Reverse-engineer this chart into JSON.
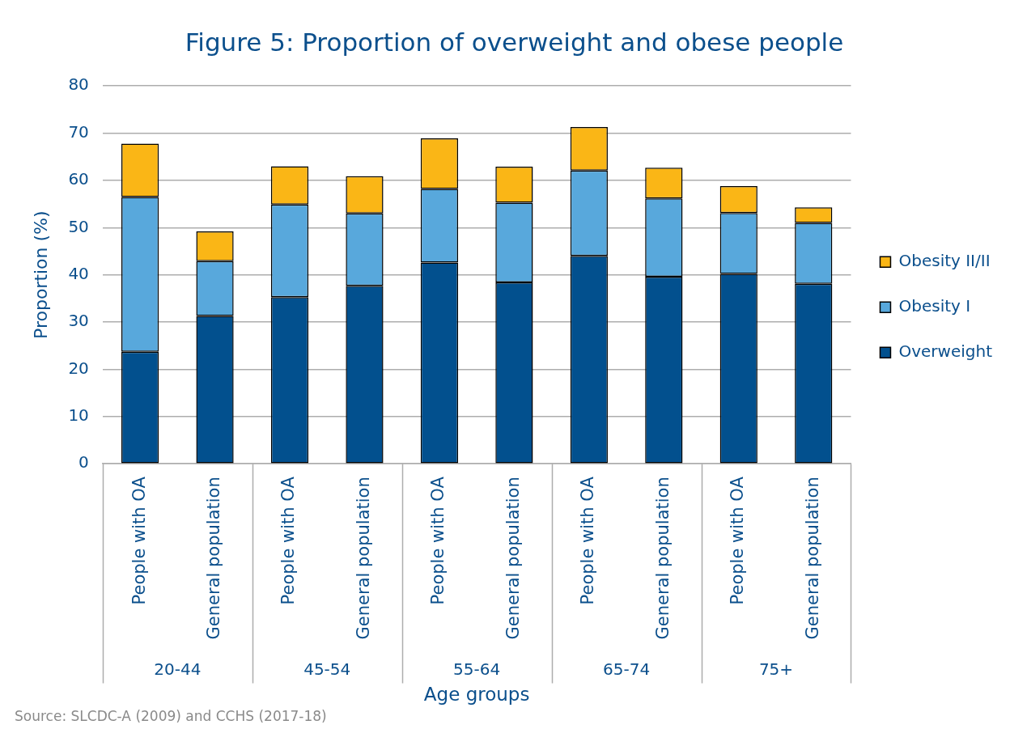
{
  "chart_data": {
    "type": "bar",
    "title": "Figure 5: Proportion of overweight and obese people",
    "xlabel": "Age groups",
    "ylabel": "Proportion (%)",
    "categories": [
      "People with OA",
      "General population",
      "People with OA",
      "General population",
      "People with OA",
      "General population",
      "People with OA",
      "General population",
      "People with OA",
      "General population"
    ],
    "series": [
      {
        "name": "Overweight",
        "color": "#02508e",
        "values": [
          23.7,
          31.3,
          35.3,
          37.7,
          42.6,
          38.4,
          44,
          39.6,
          40.2,
          38.1
        ]
      },
      {
        "name": "Obesity I",
        "color": "#58a8dc",
        "values": [
          32.8,
          11.6,
          19.6,
          15.3,
          15.6,
          16.9,
          18.1,
          16.6,
          12.9,
          12.9
        ]
      },
      {
        "name": "Obesity II/II",
        "color": "#fab616",
        "values": [
          11.3,
          6.3,
          8.1,
          7.9,
          10.7,
          7.6,
          9.2,
          6.5,
          5.7,
          3.3
        ]
      }
    ],
    "stacked": true,
    "ylim": [
      0,
      80
    ],
    "yticks": [
      0,
      10,
      20,
      30,
      40,
      50,
      60,
      70,
      80
    ],
    "grid": "y",
    "legend": "right",
    "annotations": [
      "20-44",
      "45-54",
      "55-64",
      "65-74",
      "75+",
      "Source: SLCDC-A (2009) and CCHS (2017-18)"
    ]
  }
}
